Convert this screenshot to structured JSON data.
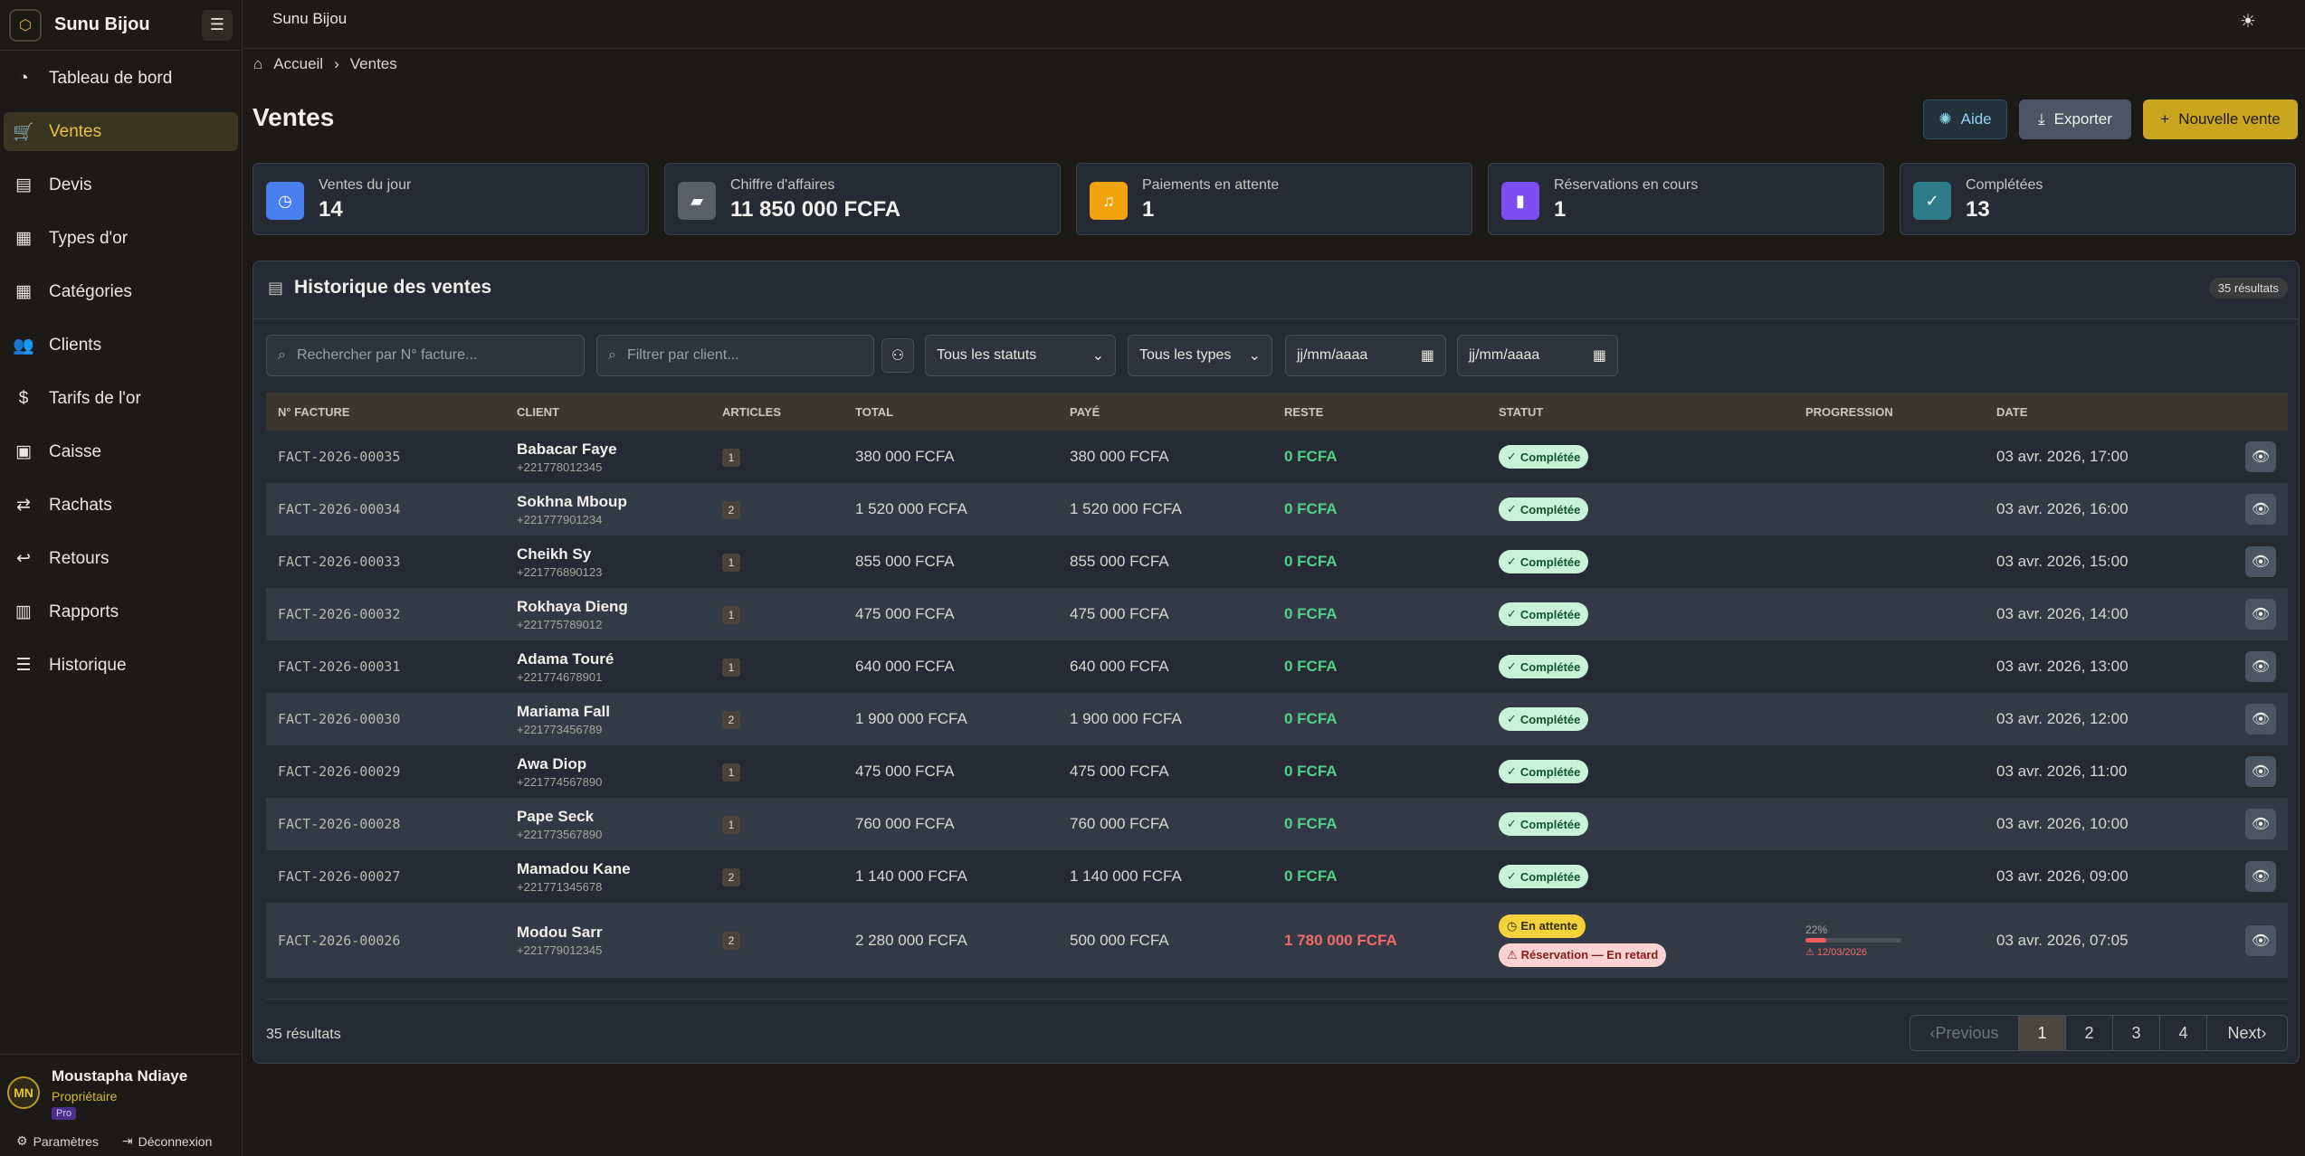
{
  "app": {
    "name": "Sunu Bijou",
    "topbar_title": "Sunu Bijou"
  },
  "sidebar": {
    "items": [
      {
        "label": "Tableau de bord",
        "icon": "pie-chart-icon",
        "glyph": "◔"
      },
      {
        "label": "Ventes",
        "icon": "shopping-cart-icon",
        "glyph": "🛒"
      },
      {
        "label": "Devis",
        "icon": "document-icon",
        "glyph": "▤"
      },
      {
        "label": "Types d'or",
        "icon": "grid-icon",
        "glyph": "▦"
      },
      {
        "label": "Catégories",
        "icon": "grid-icon",
        "glyph": "▦"
      },
      {
        "label": "Clients",
        "icon": "users-icon",
        "glyph": "👥"
      },
      {
        "label": "Tarifs de l'or",
        "icon": "dollar-circle-icon",
        "glyph": "$"
      },
      {
        "label": "Caisse",
        "icon": "cash-register-icon",
        "glyph": "▣"
      },
      {
        "label": "Rachats",
        "icon": "swap-icon",
        "glyph": "⇄"
      },
      {
        "label": "Retours",
        "icon": "undo-icon",
        "glyph": "↩"
      },
      {
        "label": "Rapports",
        "icon": "report-icon",
        "glyph": "▥"
      },
      {
        "label": "Historique",
        "icon": "history-icon",
        "glyph": "☰"
      }
    ],
    "user": {
      "initials": "MN",
      "name": "Moustapha Ndiaye",
      "role": "Propriétaire",
      "plan": "Pro"
    },
    "settings_label": "Paramètres",
    "logout_label": "Déconnexion"
  },
  "breadcrumb": {
    "home": "Accueil",
    "current": "Ventes"
  },
  "page": {
    "title": "Ventes"
  },
  "actions": {
    "help": "Aide",
    "export": "Exporter",
    "new_sale": "Nouvelle vente"
  },
  "stats": [
    {
      "label": "Ventes du jour",
      "value": "14",
      "color": "#4a7ff0",
      "icon": "clock-icon"
    },
    {
      "label": "Chiffre d'affaires",
      "value": "11 850 000 FCFA",
      "color": "#5b5f66",
      "icon": "money-icon"
    },
    {
      "label": "Paiements en attente",
      "value": "1",
      "color": "#f0a30a",
      "icon": "bell-icon"
    },
    {
      "label": "Réservations en cours",
      "value": "1",
      "color": "#7c4df0",
      "icon": "bookmark-icon"
    },
    {
      "label": "Complétées",
      "value": "13",
      "color": "#2e7c8a",
      "icon": "check-circle-icon"
    }
  ],
  "history": {
    "title": "Historique des ventes",
    "count_badge": "35 résultats",
    "filters": {
      "invoice_placeholder": "Rechercher par N° facture...",
      "client_placeholder": "Filtrer par client...",
      "status_value": "Tous les statuts",
      "type_value": "Tous les types",
      "date_from": "jj/mm/aaaa",
      "date_to": "jj/mm/aaaa"
    },
    "columns": [
      "N° FACTURE",
      "CLIENT",
      "ARTICLES",
      "TOTAL",
      "PAYÉ",
      "RESTE",
      "STATUT",
      "PROGRESSION",
      "DATE"
    ],
    "rows": [
      {
        "invoice": "FACT-2026-00035",
        "client": "Babacar Faye",
        "phone": "+221778012345",
        "articles": "1",
        "total": "380 000 FCFA",
        "paid": "380 000 FCFA",
        "rest": "0 FCFA",
        "status": "Complétée",
        "date": "03 avr. 2026, 17:00"
      },
      {
        "invoice": "FACT-2026-00034",
        "client": "Sokhna Mboup",
        "phone": "+221777901234",
        "articles": "2",
        "total": "1 520 000 FCFA",
        "paid": "1 520 000 FCFA",
        "rest": "0 FCFA",
        "status": "Complétée",
        "date": "03 avr. 2026, 16:00"
      },
      {
        "invoice": "FACT-2026-00033",
        "client": "Cheikh Sy",
        "phone": "+221776890123",
        "articles": "1",
        "total": "855 000 FCFA",
        "paid": "855 000 FCFA",
        "rest": "0 FCFA",
        "status": "Complétée",
        "date": "03 avr. 2026, 15:00"
      },
      {
        "invoice": "FACT-2026-00032",
        "client": "Rokhaya Dieng",
        "phone": "+221775789012",
        "articles": "1",
        "total": "475 000 FCFA",
        "paid": "475 000 FCFA",
        "rest": "0 FCFA",
        "status": "Complétée",
        "date": "03 avr. 2026, 14:00"
      },
      {
        "invoice": "FACT-2026-00031",
        "client": "Adama Touré",
        "phone": "+221774678901",
        "articles": "1",
        "total": "640 000 FCFA",
        "paid": "640 000 FCFA",
        "rest": "0 FCFA",
        "status": "Complétée",
        "date": "03 avr. 2026, 13:00"
      },
      {
        "invoice": "FACT-2026-00030",
        "client": "Mariama Fall",
        "phone": "+221773456789",
        "articles": "2",
        "total": "1 900 000 FCFA",
        "paid": "1 900 000 FCFA",
        "rest": "0 FCFA",
        "status": "Complétée",
        "date": "03 avr. 2026, 12:00"
      },
      {
        "invoice": "FACT-2026-00029",
        "client": "Awa Diop",
        "phone": "+221774567890",
        "articles": "1",
        "total": "475 000 FCFA",
        "paid": "475 000 FCFA",
        "rest": "0 FCFA",
        "status": "Complétée",
        "date": "03 avr. 2026, 11:00"
      },
      {
        "invoice": "FACT-2026-00028",
        "client": "Pape Seck",
        "phone": "+221773567890",
        "articles": "1",
        "total": "760 000 FCFA",
        "paid": "760 000 FCFA",
        "rest": "0 FCFA",
        "status": "Complétée",
        "date": "03 avr. 2026, 10:00"
      },
      {
        "invoice": "FACT-2026-00027",
        "client": "Mamadou Kane",
        "phone": "+221771345678",
        "articles": "2",
        "total": "1 140 000 FCFA",
        "paid": "1 140 000 FCFA",
        "rest": "0 FCFA",
        "status": "Complétée",
        "date": "03 avr. 2026, 09:00"
      },
      {
        "invoice": "FACT-2026-00026",
        "client": "Modou Sarr",
        "phone": "+221779012345",
        "articles": "2",
        "total": "2 280 000 FCFA",
        "paid": "500 000 FCFA",
        "rest": "1 780 000 FCFA",
        "status": "En attente",
        "status2": "Réservation — En retard",
        "progress_label": "22%",
        "progress": 0.22,
        "progress_late": "12/03/2026",
        "date": "03 avr. 2026, 07:05"
      }
    ],
    "results_text": "35 résultats",
    "pagination": {
      "previous": "Previous",
      "pages": [
        "1",
        "2",
        "3",
        "4"
      ],
      "current": "1",
      "next": "Next"
    }
  }
}
